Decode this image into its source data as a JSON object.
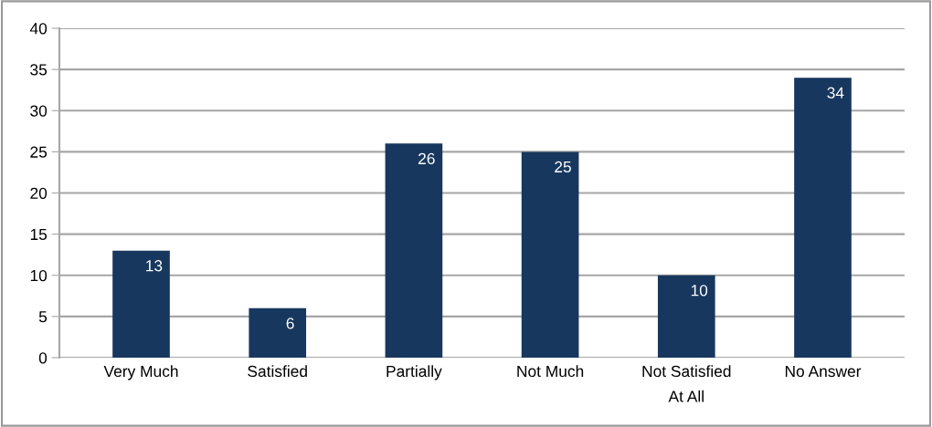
{
  "chart_data": {
    "type": "bar",
    "categories": [
      "Very Much",
      "Satisfied",
      "Partially",
      "Not Much",
      "Not Satisfied\nAt All",
      "No Answer"
    ],
    "values": [
      13,
      6,
      26,
      25,
      10,
      34
    ],
    "color": "#17375e",
    "ylim": [
      0,
      40
    ],
    "yticks": [
      0,
      5,
      10,
      15,
      20,
      25,
      30,
      35,
      40
    ],
    "grid": "y",
    "data_labels": true,
    "legend": false
  }
}
